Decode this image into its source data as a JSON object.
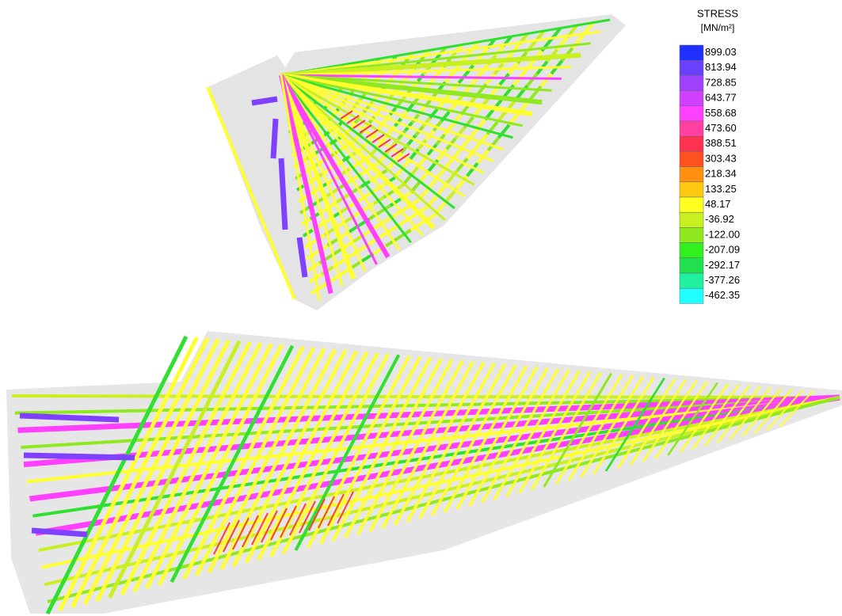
{
  "legend": {
    "title": "STRESS",
    "unit": "[MN/m²]",
    "labels": [
      "899.03",
      "813.94",
      "728.85",
      "643.77",
      "558.68",
      "473.60",
      "388.51",
      "303.43",
      "218.34",
      "133.25",
      "48.17",
      "-36.92",
      "-122.00",
      "-207.09",
      "-292.17",
      "-377.26",
      "-462.35"
    ],
    "colors": [
      "#2030ff",
      "#6a40ff",
      "#a040ff",
      "#d040ff",
      "#ff40ff",
      "#ff40a0",
      "#ff3050",
      "#ff5020",
      "#ff9010",
      "#ffc810",
      "#ffff20",
      "#c8f020",
      "#90e820",
      "#30f020",
      "#20e050",
      "#20f0a0",
      "#20ffff"
    ]
  }
}
